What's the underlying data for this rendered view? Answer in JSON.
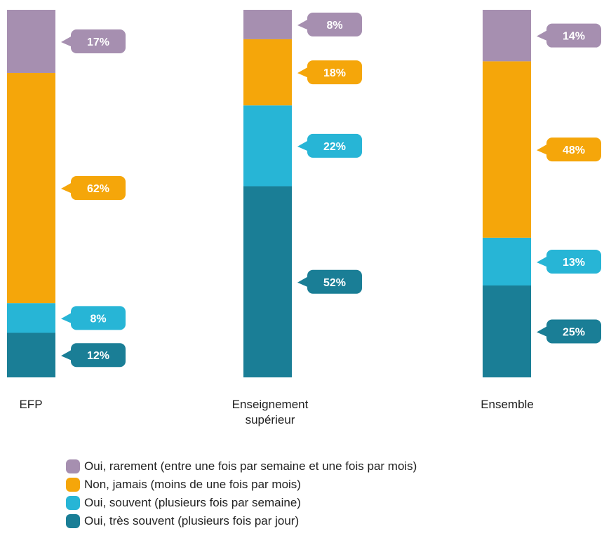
{
  "chart_data": {
    "type": "bar",
    "stacked": true,
    "percent_stacked": true,
    "categories": [
      "EFP",
      "Enseignement supérieur",
      "Ensemble"
    ],
    "category_display": [
      [
        "EFP"
      ],
      [
        "Enseignement",
        "supérieur"
      ],
      [
        "Ensemble"
      ]
    ],
    "series": [
      {
        "name": "Oui, très souvent (plusieurs fois par jour)",
        "color": "#1a7e96",
        "values": [
          12,
          52,
          25
        ],
        "labels": [
          "12%",
          "52%",
          "25%"
        ]
      },
      {
        "name": "Oui, souvent (plusieurs fois par semaine)",
        "color": "#27b5d6",
        "values": [
          8,
          22,
          13
        ],
        "labels": [
          "8%",
          "22%",
          "13%"
        ]
      },
      {
        "name": "Non, jamais (moins de une fois par mois)",
        "color": "#f5a60a",
        "values": [
          62,
          18,
          48
        ],
        "labels": [
          "62%",
          "18%",
          "48%"
        ]
      },
      {
        "name": "Oui, rarement (entre une fois par semaine et une fois par mois)",
        "color": "#a68fb0",
        "values": [
          17,
          8,
          14
        ],
        "labels": [
          "17%",
          "8%",
          "14%"
        ]
      }
    ],
    "ylim": [
      0,
      100
    ],
    "grid": false,
    "legend_position": "bottom"
  },
  "legend": {
    "items": [
      {
        "label": "Oui, rarement (entre une fois par semaine et une fois par mois)",
        "color": "#a68fb0"
      },
      {
        "label": "Non, jamais (moins de une fois par mois)",
        "color": "#f5a60a"
      },
      {
        "label": "Oui, souvent (plusieurs fois par semaine)",
        "color": "#27b5d6"
      },
      {
        "label": "Oui, très souvent (plusieurs fois par jour)",
        "color": "#1a7e96"
      }
    ]
  }
}
